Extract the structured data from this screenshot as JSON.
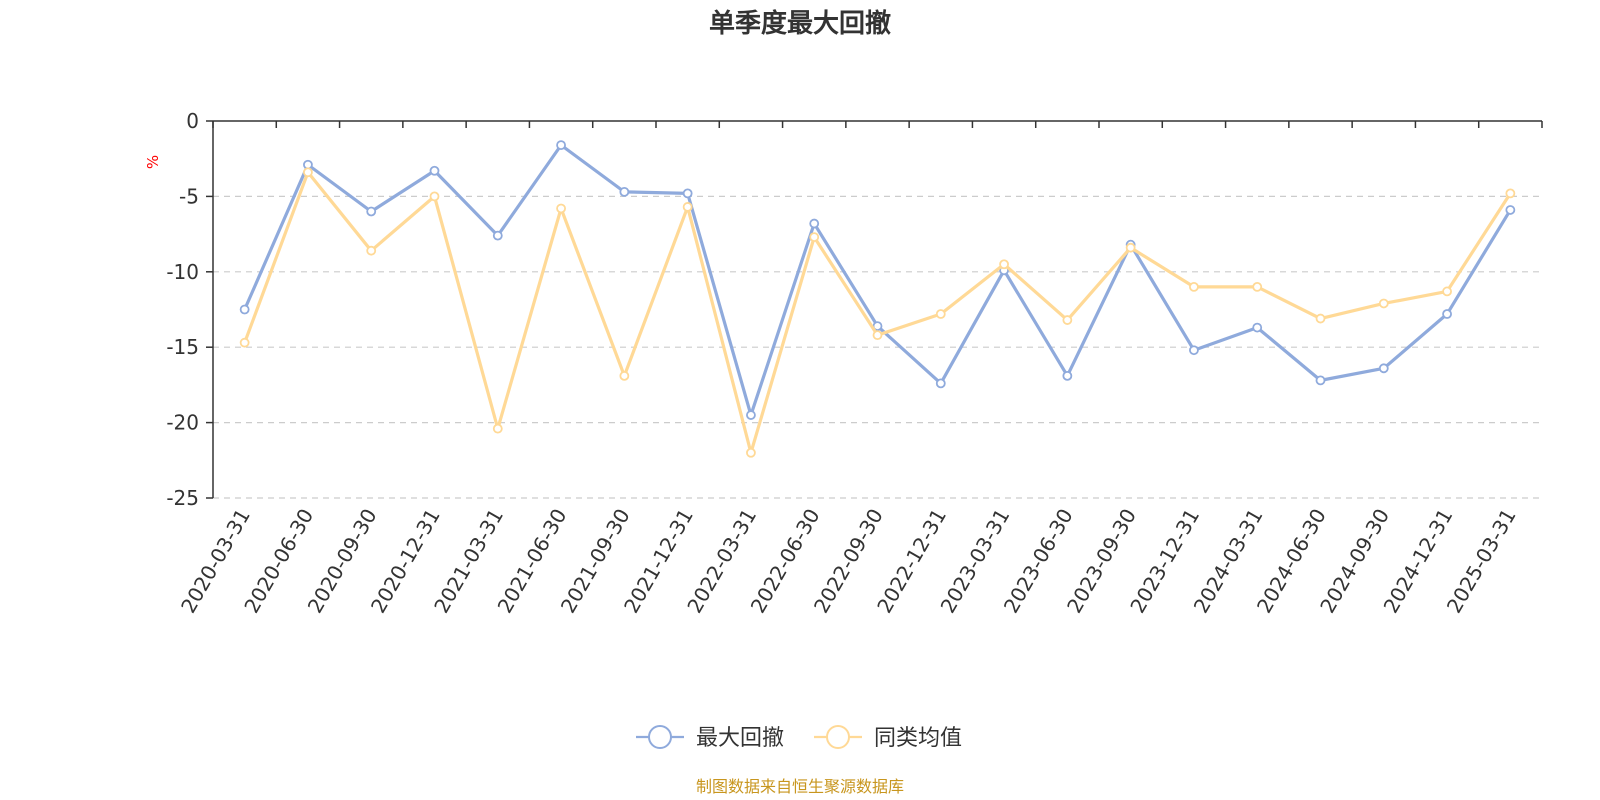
{
  "chart_data": {
    "type": "line",
    "title": "单季度最大回撤",
    "ylabel": "%",
    "ylim": [
      -25,
      0
    ],
    "yticks": [
      0,
      -5,
      -10,
      -15,
      -20,
      -25
    ],
    "grid": true,
    "legend_position": "bottom",
    "categories": [
      "2020-03-31",
      "2020-06-30",
      "2020-09-30",
      "2020-12-31",
      "2021-03-31",
      "2021-06-30",
      "2021-09-30",
      "2021-12-31",
      "2022-03-31",
      "2022-06-30",
      "2022-09-30",
      "2022-12-31",
      "2023-03-31",
      "2023-06-30",
      "2023-09-30",
      "2023-12-31",
      "2024-03-31",
      "2024-06-30",
      "2024-09-30",
      "2024-12-31",
      "2025-03-31"
    ],
    "series": [
      {
        "name": "最大回撤",
        "color": "#8faadc",
        "values": [
          -12.5,
          -2.9,
          -6.0,
          -3.3,
          -7.6,
          -1.6,
          -4.7,
          -4.8,
          -19.5,
          -6.8,
          -13.6,
          -17.4,
          -9.9,
          -16.9,
          -8.2,
          -15.2,
          -13.7,
          -17.2,
          -16.4,
          -12.8,
          -5.9
        ]
      },
      {
        "name": "同类均值",
        "color": "#ffd996",
        "values": [
          -14.7,
          -3.4,
          -8.6,
          -5.0,
          -20.4,
          -5.8,
          -16.9,
          -5.7,
          -22.0,
          -7.7,
          -14.2,
          -12.8,
          -9.5,
          -13.2,
          -8.4,
          -11.0,
          -11.0,
          -13.1,
          -12.1,
          -11.3,
          -4.8
        ]
      }
    ]
  },
  "footer": {
    "source": "制图数据来自恒生聚源数据库",
    "source_color": "#c8961e"
  },
  "colors": {
    "axis": "#333333",
    "grid": "#cccccc",
    "unit": "#ff0000"
  }
}
